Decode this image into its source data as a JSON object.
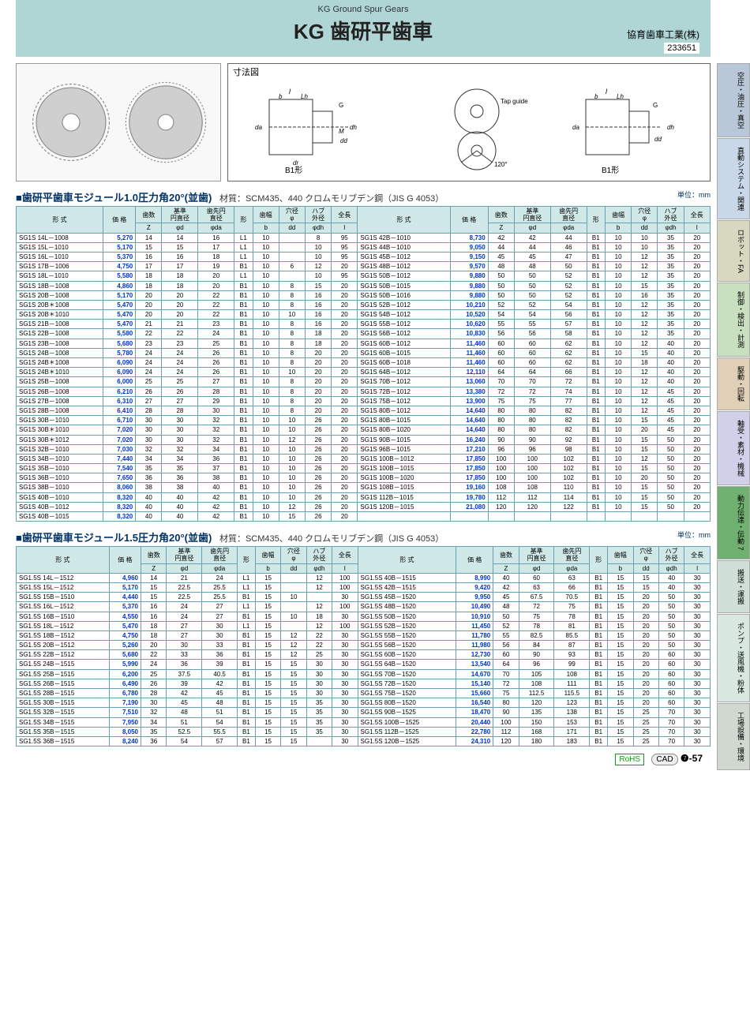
{
  "header": {
    "sub": "KG Ground Spur Gears",
    "title": "KG 歯研平歯車",
    "company": "協育歯車工業(株)",
    "code": "233651"
  },
  "diagram_label": "寸法図",
  "diagram_forms": [
    "B1形",
    "B1形"
  ],
  "diagram_annotations": [
    "l",
    "b",
    "Lh",
    "G",
    "M",
    "da",
    "dd",
    "dh",
    "dr",
    "Tap guide",
    "120°"
  ],
  "sidebar": [
    {
      "label": "空圧・油圧・真空",
      "bg": "#b8c8d8"
    },
    {
      "label": "直動システム・関連",
      "bg": "#c8d8e8"
    },
    {
      "label": "ロボット・FA",
      "bg": "#d8d8c0"
    },
    {
      "label": "制御・検出・計測",
      "bg": "#c8e0c0"
    },
    {
      "label": "駆動・回転",
      "bg": "#e0d0b8"
    },
    {
      "label": "軸受・素材・機械",
      "bg": "#d0d0e8"
    },
    {
      "label": "動力伝達・伝動 7",
      "bg": "#70b070"
    },
    {
      "label": "搬送・運搬",
      "bg": "#d0e0d8"
    },
    {
      "label": "ポンプ・送風機・粉体",
      "bg": "#d8e8e0"
    },
    {
      "label": "工場設備・環境",
      "bg": "#d0d8d0"
    }
  ],
  "columns": [
    "形 式",
    "価 格",
    "歯数 Z",
    "基準円直径 φd",
    "歯先円直径 φda",
    "形",
    "歯幅 b",
    "穴径 φ dd",
    "ハブ外径 φdh",
    "全長 l"
  ],
  "section1": {
    "title": "■歯研平歯車モジュール1.0圧力角20°(並歯)",
    "material": "材質：SCM435、440 クロムモリブデン鋼（JIS G 4053）",
    "unit": "単位：mm",
    "left": [
      [
        "SG1S 14L－1008",
        "5,270",
        "14",
        "14",
        "16",
        "L1",
        "10",
        "",
        "8",
        "95"
      ],
      [
        "SG1S 15L－1010",
        "5,170",
        "15",
        "15",
        "17",
        "L1",
        "10",
        "",
        "10",
        "95"
      ],
      [
        "SG1S 16L－1010",
        "5,370",
        "16",
        "16",
        "18",
        "L1",
        "10",
        "",
        "10",
        "95"
      ],
      [
        "SG1S 17B－1006",
        "4,750",
        "17",
        "17",
        "19",
        "B1",
        "10",
        "6",
        "12",
        "20"
      ],
      [
        "SG1S 18L－1010",
        "5,580",
        "18",
        "18",
        "20",
        "L1",
        "10",
        "",
        "10",
        "95"
      ],
      [
        "SG1S 18B－1008",
        "4,860",
        "18",
        "18",
        "20",
        "B1",
        "10",
        "8",
        "15",
        "20"
      ],
      [
        "SG1S 20B－1008",
        "5,170",
        "20",
        "20",
        "22",
        "B1",
        "10",
        "8",
        "16",
        "20"
      ],
      [
        "SG1S 20B＊1008",
        "5,470",
        "20",
        "20",
        "22",
        "B1",
        "10",
        "8",
        "16",
        "20"
      ],
      [
        "SG1S 20B＊1010",
        "5,470",
        "20",
        "20",
        "22",
        "B1",
        "10",
        "10",
        "16",
        "20"
      ],
      [
        "SG1S 21B－1008",
        "5,470",
        "21",
        "21",
        "23",
        "B1",
        "10",
        "8",
        "16",
        "20"
      ],
      [
        "SG1S 22B－1008",
        "5,580",
        "22",
        "22",
        "24",
        "B1",
        "10",
        "8",
        "18",
        "20"
      ],
      [
        "SG1S 23B－1008",
        "5,680",
        "23",
        "23",
        "25",
        "B1",
        "10",
        "8",
        "18",
        "20"
      ],
      [
        "SG1S 24B－1008",
        "5,780",
        "24",
        "24",
        "26",
        "B1",
        "10",
        "8",
        "20",
        "20"
      ],
      [
        "SG1S 24B＊1008",
        "6,090",
        "24",
        "24",
        "26",
        "B1",
        "10",
        "8",
        "20",
        "20"
      ],
      [
        "SG1S 24B＊1010",
        "6,090",
        "24",
        "24",
        "26",
        "B1",
        "10",
        "10",
        "20",
        "20"
      ],
      [
        "SG1S 25B－1008",
        "6,000",
        "25",
        "25",
        "27",
        "B1",
        "10",
        "8",
        "20",
        "20"
      ],
      [
        "SG1S 26B－1008",
        "6,210",
        "26",
        "26",
        "28",
        "B1",
        "10",
        "8",
        "20",
        "20"
      ],
      [
        "SG1S 27B－1008",
        "6,310",
        "27",
        "27",
        "29",
        "B1",
        "10",
        "8",
        "20",
        "20"
      ],
      [
        "SG1S 28B－1008",
        "6,410",
        "28",
        "28",
        "30",
        "B1",
        "10",
        "8",
        "20",
        "20"
      ],
      [
        "SG1S 30B－1010",
        "6,710",
        "30",
        "30",
        "32",
        "B1",
        "10",
        "10",
        "26",
        "20"
      ],
      [
        "SG1S 30B＊1010",
        "7,020",
        "30",
        "30",
        "32",
        "B1",
        "10",
        "10",
        "26",
        "20"
      ],
      [
        "SG1S 30B＊1012",
        "7,020",
        "30",
        "30",
        "32",
        "B1",
        "10",
        "12",
        "26",
        "20"
      ],
      [
        "SG1S 32B－1010",
        "7,030",
        "32",
        "32",
        "34",
        "B1",
        "10",
        "10",
        "26",
        "20"
      ],
      [
        "SG1S 34B－1010",
        "7,440",
        "34",
        "34",
        "36",
        "B1",
        "10",
        "10",
        "26",
        "20"
      ],
      [
        "SG1S 35B－1010",
        "7,540",
        "35",
        "35",
        "37",
        "B1",
        "10",
        "10",
        "26",
        "20"
      ],
      [
        "SG1S 36B－1010",
        "7,650",
        "36",
        "36",
        "38",
        "B1",
        "10",
        "10",
        "26",
        "20"
      ],
      [
        "SG1S 38B－1010",
        "8,060",
        "38",
        "38",
        "40",
        "B1",
        "10",
        "10",
        "26",
        "20"
      ],
      [
        "SG1S 40B－1010",
        "8,320",
        "40",
        "40",
        "42",
        "B1",
        "10",
        "10",
        "26",
        "20"
      ],
      [
        "SG1S 40B－1012",
        "8,320",
        "40",
        "40",
        "42",
        "B1",
        "10",
        "12",
        "26",
        "20"
      ],
      [
        "SG1S 40B－1015",
        "8,320",
        "40",
        "40",
        "42",
        "B1",
        "10",
        "15",
        "26",
        "20"
      ]
    ],
    "right": [
      [
        "SG1S 42B－1010",
        "8,730",
        "42",
        "42",
        "44",
        "B1",
        "10",
        "10",
        "35",
        "20"
      ],
      [
        "SG1S 44B－1010",
        "9,050",
        "44",
        "44",
        "46",
        "B1",
        "10",
        "10",
        "35",
        "20"
      ],
      [
        "SG1S 45B－1012",
        "9,150",
        "45",
        "45",
        "47",
        "B1",
        "10",
        "12",
        "35",
        "20"
      ],
      [
        "SG1S 48B－1012",
        "9,570",
        "48",
        "48",
        "50",
        "B1",
        "10",
        "12",
        "35",
        "20"
      ],
      [
        "SG1S 50B－1012",
        "9,880",
        "50",
        "50",
        "52",
        "B1",
        "10",
        "12",
        "35",
        "20"
      ],
      [
        "SG1S 50B－1015",
        "9,880",
        "50",
        "50",
        "52",
        "B1",
        "10",
        "15",
        "35",
        "20"
      ],
      [
        "SG1S 50B－1016",
        "9,880",
        "50",
        "50",
        "52",
        "B1",
        "10",
        "16",
        "35",
        "20"
      ],
      [
        "SG1S 52B－1012",
        "10,210",
        "52",
        "52",
        "54",
        "B1",
        "10",
        "12",
        "35",
        "20"
      ],
      [
        "SG1S 54B－1012",
        "10,520",
        "54",
        "54",
        "56",
        "B1",
        "10",
        "12",
        "35",
        "20"
      ],
      [
        "SG1S 55B－1012",
        "10,620",
        "55",
        "55",
        "57",
        "B1",
        "10",
        "12",
        "35",
        "20"
      ],
      [
        "SG1S 56B－1012",
        "10,830",
        "56",
        "56",
        "58",
        "B1",
        "10",
        "12",
        "35",
        "20"
      ],
      [
        "SG1S 60B－1012",
        "11,460",
        "60",
        "60",
        "62",
        "B1",
        "10",
        "12",
        "40",
        "20"
      ],
      [
        "SG1S 60B－1015",
        "11,460",
        "60",
        "60",
        "62",
        "B1",
        "10",
        "15",
        "40",
        "20"
      ],
      [
        "SG1S 60B－1018",
        "11,460",
        "60",
        "60",
        "62",
        "B1",
        "10",
        "18",
        "40",
        "20"
      ],
      [
        "SG1S 64B－1012",
        "12,110",
        "64",
        "64",
        "66",
        "B1",
        "10",
        "12",
        "40",
        "20"
      ],
      [
        "SG1S 70B－1012",
        "13,060",
        "70",
        "70",
        "72",
        "B1",
        "10",
        "12",
        "40",
        "20"
      ],
      [
        "SG1S 72B－1012",
        "13,380",
        "72",
        "72",
        "74",
        "B1",
        "10",
        "12",
        "45",
        "20"
      ],
      [
        "SG1S 75B－1012",
        "13,900",
        "75",
        "75",
        "77",
        "B1",
        "10",
        "12",
        "45",
        "20"
      ],
      [
        "SG1S 80B－1012",
        "14,640",
        "80",
        "80",
        "82",
        "B1",
        "10",
        "12",
        "45",
        "20"
      ],
      [
        "SG1S 80B－1015",
        "14,640",
        "80",
        "80",
        "82",
        "B1",
        "10",
        "15",
        "45",
        "20"
      ],
      [
        "SG1S 80B－1020",
        "14,640",
        "80",
        "80",
        "82",
        "B1",
        "10",
        "20",
        "45",
        "20"
      ],
      [
        "SG1S 90B－1015",
        "16,240",
        "90",
        "90",
        "92",
        "B1",
        "10",
        "15",
        "50",
        "20"
      ],
      [
        "SG1S 96B－1015",
        "17,210",
        "96",
        "96",
        "98",
        "B1",
        "10",
        "15",
        "50",
        "20"
      ],
      [
        "SG1S 100B－1012",
        "17,850",
        "100",
        "100",
        "102",
        "B1",
        "10",
        "12",
        "50",
        "20"
      ],
      [
        "SG1S 100B－1015",
        "17,850",
        "100",
        "100",
        "102",
        "B1",
        "10",
        "15",
        "50",
        "20"
      ],
      [
        "SG1S 100B－1020",
        "17,850",
        "100",
        "100",
        "102",
        "B1",
        "10",
        "20",
        "50",
        "20"
      ],
      [
        "SG1S 108B－1015",
        "19,160",
        "108",
        "108",
        "110",
        "B1",
        "10",
        "15",
        "50",
        "20"
      ],
      [
        "SG1S 112B－1015",
        "19,780",
        "112",
        "112",
        "114",
        "B1",
        "10",
        "15",
        "50",
        "20"
      ],
      [
        "SG1S 120B－1015",
        "21,080",
        "120",
        "120",
        "122",
        "B1",
        "10",
        "15",
        "50",
        "20"
      ]
    ]
  },
  "section2": {
    "title": "■歯研平歯車モジュール1.5圧力角20°(並歯)",
    "material": "材質：SCM435、440 クロムモリブデン鋼（JIS G 4053）",
    "unit": "単位：mm",
    "left": [
      [
        "SG1.5S 14L－1512",
        "4,960",
        "14",
        "21",
        "24",
        "L1",
        "15",
        "",
        "12",
        "100"
      ],
      [
        "SG1.5S 15L－1512",
        "5,170",
        "15",
        "22.5",
        "25.5",
        "L1",
        "15",
        "",
        "12",
        "100"
      ],
      [
        "SG1.5S 15B－1510",
        "4,440",
        "15",
        "22.5",
        "25.5",
        "B1",
        "15",
        "10",
        "",
        "30"
      ],
      [
        "SG1.5S 16L－1512",
        "5,370",
        "16",
        "24",
        "27",
        "L1",
        "15",
        "",
        "12",
        "100"
      ],
      [
        "SG1.5S 16B－1510",
        "4,550",
        "16",
        "24",
        "27",
        "B1",
        "15",
        "10",
        "18",
        "30"
      ],
      [
        "SG1.5S 18L－1512",
        "5,470",
        "18",
        "27",
        "30",
        "L1",
        "15",
        "",
        "12",
        "100"
      ],
      [
        "SG1.5S 18B－1512",
        "4,750",
        "18",
        "27",
        "30",
        "B1",
        "15",
        "12",
        "22",
        "30"
      ],
      [
        "SG1.5S 20B－1512",
        "5,260",
        "20",
        "30",
        "33",
        "B1",
        "15",
        "12",
        "22",
        "30"
      ],
      [
        "SG1.5S 22B－1512",
        "5,680",
        "22",
        "33",
        "36",
        "B1",
        "15",
        "12",
        "25",
        "30"
      ],
      [
        "SG1.5S 24B－1515",
        "5,990",
        "24",
        "36",
        "39",
        "B1",
        "15",
        "15",
        "30",
        "30"
      ],
      [
        "SG1.5S 25B－1515",
        "6,200",
        "25",
        "37.5",
        "40.5",
        "B1",
        "15",
        "15",
        "30",
        "30"
      ],
      [
        "SG1.5S 26B－1515",
        "6,490",
        "26",
        "39",
        "42",
        "B1",
        "15",
        "15",
        "30",
        "30"
      ],
      [
        "SG1.5S 28B－1515",
        "6,780",
        "28",
        "42",
        "45",
        "B1",
        "15",
        "15",
        "30",
        "30"
      ],
      [
        "SG1.5S 30B－1515",
        "7,190",
        "30",
        "45",
        "48",
        "B1",
        "15",
        "15",
        "35",
        "30"
      ],
      [
        "SG1.5S 32B－1515",
        "7,510",
        "32",
        "48",
        "51",
        "B1",
        "15",
        "15",
        "35",
        "30"
      ],
      [
        "SG1.5S 34B－1515",
        "7,950",
        "34",
        "51",
        "54",
        "B1",
        "15",
        "15",
        "35",
        "30"
      ],
      [
        "SG1.5S 35B－1515",
        "8,050",
        "35",
        "52.5",
        "55.5",
        "B1",
        "15",
        "15",
        "35",
        "30"
      ],
      [
        "SG1.5S 36B－1515",
        "8,240",
        "36",
        "54",
        "57",
        "B1",
        "15",
        "15",
        "",
        "30"
      ]
    ],
    "right": [
      [
        "SG1.5S 40B－1515",
        "8,990",
        "40",
        "60",
        "63",
        "B1",
        "15",
        "15",
        "40",
        "30"
      ],
      [
        "SG1.5S 42B－1515",
        "9,420",
        "42",
        "63",
        "66",
        "B1",
        "15",
        "15",
        "40",
        "30"
      ],
      [
        "SG1.5S 45B－1520",
        "9,950",
        "45",
        "67.5",
        "70.5",
        "B1",
        "15",
        "20",
        "50",
        "30"
      ],
      [
        "SG1.5S 48B－1520",
        "10,490",
        "48",
        "72",
        "75",
        "B1",
        "15",
        "20",
        "50",
        "30"
      ],
      [
        "SG1.5S 50B－1520",
        "10,910",
        "50",
        "75",
        "78",
        "B1",
        "15",
        "20",
        "50",
        "30"
      ],
      [
        "SG1.5S 52B－1520",
        "11,450",
        "52",
        "78",
        "81",
        "B1",
        "15",
        "20",
        "50",
        "30"
      ],
      [
        "SG1.5S 55B－1520",
        "11,780",
        "55",
        "82.5",
        "85.5",
        "B1",
        "15",
        "20",
        "50",
        "30"
      ],
      [
        "SG1.5S 56B－1520",
        "11,980",
        "56",
        "84",
        "87",
        "B1",
        "15",
        "20",
        "50",
        "30"
      ],
      [
        "SG1.5S 60B－1520",
        "12,730",
        "60",
        "90",
        "93",
        "B1",
        "15",
        "20",
        "60",
        "30"
      ],
      [
        "SG1.5S 64B－1520",
        "13,540",
        "64",
        "96",
        "99",
        "B1",
        "15",
        "20",
        "60",
        "30"
      ],
      [
        "SG1.5S 70B－1520",
        "14,670",
        "70",
        "105",
        "108",
        "B1",
        "15",
        "20",
        "60",
        "30"
      ],
      [
        "SG1.5S 72B－1520",
        "15,140",
        "72",
        "108",
        "111",
        "B1",
        "15",
        "20",
        "60",
        "30"
      ],
      [
        "SG1.5S 75B－1520",
        "15,660",
        "75",
        "112.5",
        "115.5",
        "B1",
        "15",
        "20",
        "60",
        "30"
      ],
      [
        "SG1.5S 80B－1520",
        "16,540",
        "80",
        "120",
        "123",
        "B1",
        "15",
        "20",
        "60",
        "30"
      ],
      [
        "SG1.5S 90B－1525",
        "18,470",
        "90",
        "135",
        "138",
        "B1",
        "15",
        "25",
        "70",
        "30"
      ],
      [
        "SG1.5S 100B－1525",
        "20,440",
        "100",
        "150",
        "153",
        "B1",
        "15",
        "25",
        "70",
        "30"
      ],
      [
        "SG1.5S 112B－1525",
        "22,780",
        "112",
        "168",
        "171",
        "B1",
        "15",
        "25",
        "70",
        "30"
      ],
      [
        "SG1.5S 120B－1525",
        "24,310",
        "120",
        "180",
        "183",
        "B1",
        "15",
        "25",
        "70",
        "30"
      ]
    ]
  },
  "footer": {
    "rohs": "RoHS",
    "cad": "CAD",
    "page": "❼-57"
  }
}
